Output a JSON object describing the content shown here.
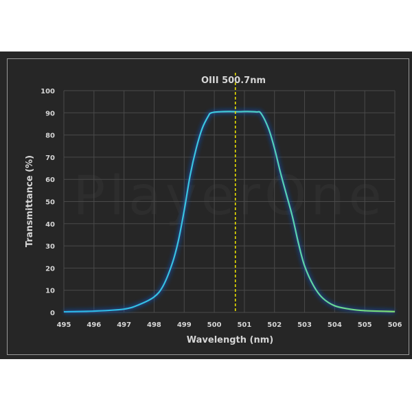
{
  "chart_data": {
    "type": "line",
    "title": "OIII 500.7nm",
    "xlabel": "Wavelength (nm)",
    "ylabel": "Transmittance (%)",
    "xlim": [
      495,
      506
    ],
    "ylim": [
      0,
      100
    ],
    "xticks": [
      495,
      496,
      497,
      498,
      499,
      500,
      501,
      502,
      503,
      504,
      505,
      506
    ],
    "yticks": [
      0,
      10,
      20,
      30,
      40,
      50,
      60,
      70,
      80,
      90,
      100
    ],
    "grid": true,
    "legend": null,
    "annotations": [
      {
        "type": "vertical_dashed_line",
        "x": 500.7,
        "color": "#e8e000",
        "label": "OIII 500.7nm"
      }
    ],
    "watermark": "PlayerOne",
    "series": [
      {
        "name": "Transmittance",
        "color_gradient": [
          "#2ab4e8",
          "#7fe070"
        ],
        "x": [
          495,
          496,
          497,
          497.5,
          498,
          498.3,
          498.6,
          498.8,
          499,
          499.2,
          499.4,
          499.6,
          499.8,
          499.9,
          500.2,
          500.5,
          500.8,
          501.1,
          501.4,
          501.55,
          501.8,
          502,
          502.2,
          502.4,
          502.6,
          502.8,
          503,
          503.3,
          503.6,
          504,
          504.5,
          505,
          506
        ],
        "y": [
          0.3,
          0.6,
          1.5,
          3.5,
          7,
          12,
          22,
          32,
          46,
          62,
          74,
          83,
          88.5,
          90,
          90.5,
          90.6,
          90.5,
          90.6,
          90.4,
          89.8,
          83,
          74,
          63,
          53,
          43,
          31,
          21,
          12,
          6.5,
          3,
          1.5,
          0.8,
          0.4
        ]
      }
    ]
  },
  "labels": {
    "title": "OIII 500.7nm",
    "xlabel": "Wavelength (nm)",
    "ylabel": "Transmittance (%)",
    "watermark": "PlayerOne"
  },
  "colors": {
    "background": "#262626",
    "grid": "#4a4a4a",
    "text": "#d6d6d6",
    "marker_line": "#e8e000",
    "curve_start": "#2ab4e8",
    "curve_end": "#7fe070"
  }
}
